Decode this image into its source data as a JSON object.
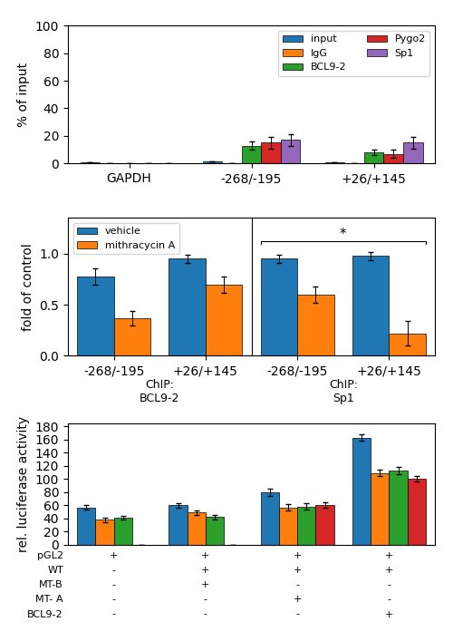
{
  "chart_data": [
    {
      "type": "bar",
      "categories": [
        "GAPDH",
        "-268/-195",
        "+26/+145"
      ],
      "y_label": "% of input",
      "ylim": [
        0,
        100
      ],
      "yticks": [
        0,
        20,
        40,
        60,
        80,
        100
      ],
      "legend": "upper right",
      "series": [
        {
          "name": "input",
          "values": [
            1,
            1.5,
            1
          ],
          "errors": [
            0,
            0,
            0
          ]
        },
        {
          "name": "IgG",
          "values": [
            0.3,
            0.3,
            0.3
          ],
          "errors": [
            0,
            0,
            0
          ]
        },
        {
          "name": "BCL9-2",
          "values": [
            0.5,
            13,
            8
          ],
          "errors": [
            0,
            3,
            2
          ]
        },
        {
          "name": "Pygo2",
          "values": [
            0.5,
            15,
            7
          ],
          "errors": [
            0,
            4,
            3
          ]
        },
        {
          "name": "Sp1",
          "values": [
            0.5,
            17,
            15
          ],
          "errors": [
            0,
            4,
            4
          ]
        }
      ]
    },
    {
      "type": "bar",
      "categories": [
        "-268/-195",
        "+26/+145",
        "-268/-195",
        "+26/+145"
      ],
      "y_label": "fold of control",
      "ylim": [
        0,
        1.35
      ],
      "yticks": [
        0.0,
        0.5,
        1.0
      ],
      "legend": "upper left",
      "series": [
        {
          "name": "vehicle",
          "values": [
            0.78,
            0.95,
            0.95,
            0.98
          ],
          "errors": [
            0.08,
            0.04,
            0.04,
            0.04
          ]
        },
        {
          "name": "mithracycin A",
          "values": [
            0.37,
            0.7,
            0.6,
            0.22
          ],
          "errors": [
            0.07,
            0.08,
            0.08,
            0.12
          ]
        }
      ],
      "groups": [
        {
          "label": "ChIP:\nBCL9-2",
          "categories": [
            0,
            1
          ]
        },
        {
          "label": "ChIP:\nSp1",
          "categories": [
            2,
            3
          ]
        }
      ],
      "annotations": [
        {
          "text": "*",
          "x": [
            2,
            3
          ],
          "y": 1.12
        }
      ]
    },
    {
      "type": "bar",
      "categories": [
        null,
        null,
        null,
        null
      ],
      "tick_labels": "y",
      "y_label": "rel. luciferase activity",
      "ylim": [
        0,
        185
      ],
      "yticks": [
        0,
        20,
        40,
        60,
        80,
        100,
        120,
        140,
        160,
        180
      ],
      "series": [
        {
          "values": [
            57,
            60,
            80,
            163
          ],
          "errors": [
            3,
            3,
            6,
            5
          ]
        },
        {
          "values": [
            38,
            49,
            57,
            109
          ],
          "errors": [
            3,
            3,
            5,
            5
          ]
        },
        {
          "values": [
            41,
            42,
            58,
            113
          ],
          "errors": [
            3,
            3,
            5,
            5
          ]
        },
        {
          "values": [
            0,
            0,
            60,
            100
          ],
          "errors": [
            0,
            0,
            4,
            4
          ]
        }
      ],
      "table": {
        "row_labels": [
          "pGL2",
          "WT",
          "MT-B",
          "MT- A",
          "BCL9-2"
        ],
        "rows": [
          [
            "+",
            "+",
            "+",
            "+"
          ],
          [
            "-",
            "+",
            "+",
            "+"
          ],
          [
            "-",
            "+",
            "-",
            "-"
          ],
          [
            "-",
            "-",
            "+",
            "-"
          ],
          [
            "-",
            "-",
            "-",
            "+"
          ]
        ]
      }
    }
  ]
}
